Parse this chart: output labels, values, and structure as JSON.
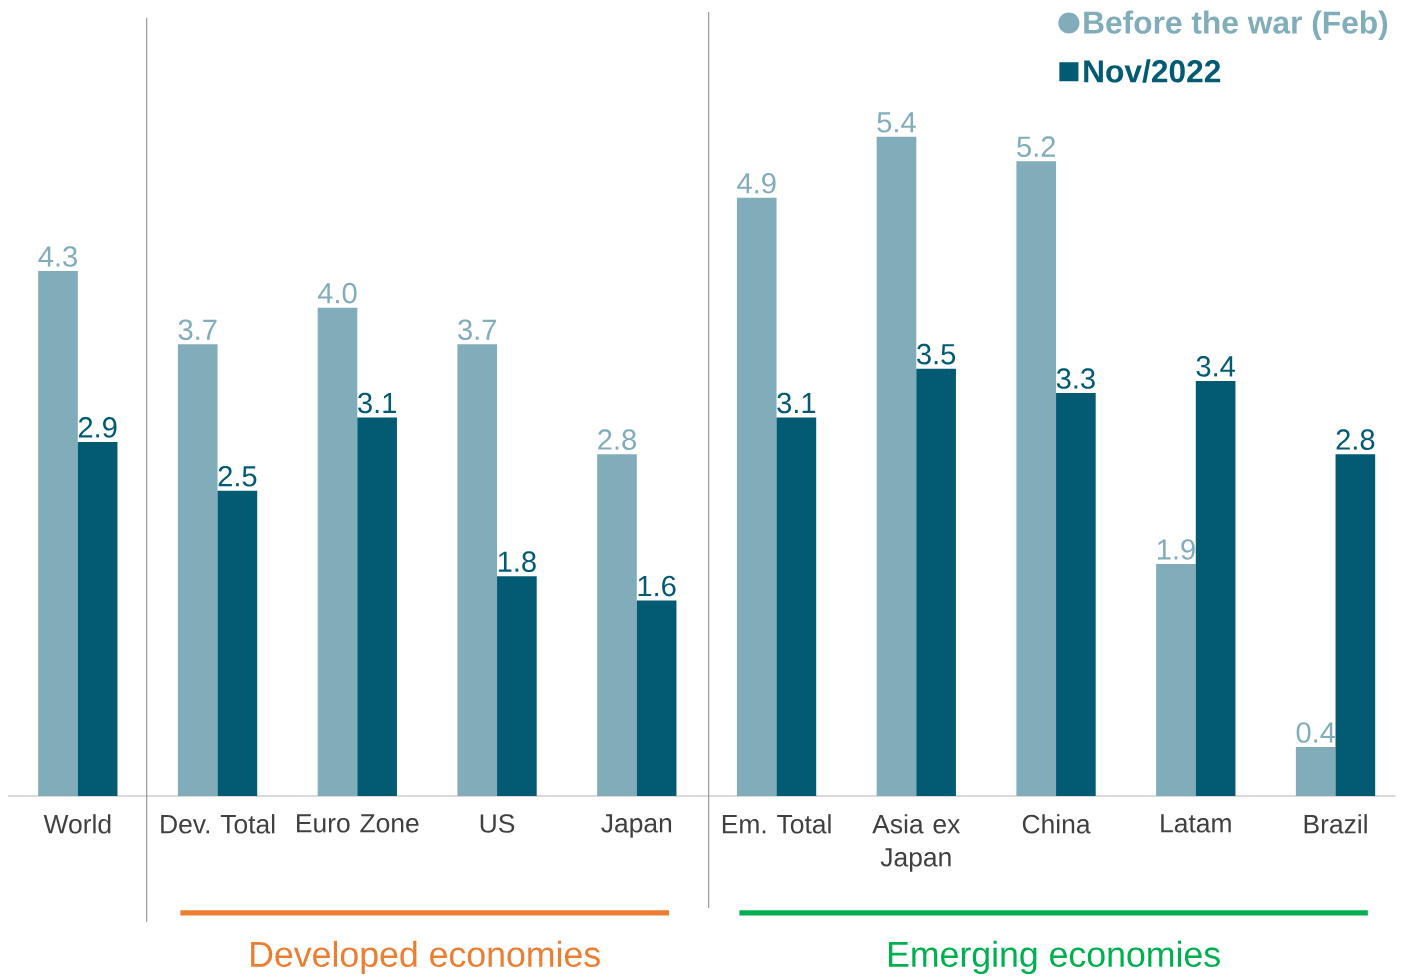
{
  "chart_data": {
    "type": "bar",
    "categories": [
      "World",
      "Dev. Total",
      "Euro Zone",
      "US",
      "Japan",
      "Em. Total",
      "Asia ex Japan",
      "China",
      "Latam",
      "Brazil"
    ],
    "series": [
      {
        "name": "Before the war (Feb)",
        "color": "#80adb9",
        "marker": "circle",
        "values": [
          4.3,
          3.7,
          4.0,
          3.7,
          2.8,
          4.9,
          5.4,
          5.2,
          1.9,
          0.4
        ],
        "value_labels": [
          "4.3",
          "3.7",
          "4.0",
          "3.7",
          "2.8",
          "4.9",
          "5.4",
          "5.2",
          "1.9",
          "0.4"
        ]
      },
      {
        "name": "Nov/2022",
        "color": "#035a73",
        "marker": "square",
        "values": [
          2.9,
          2.5,
          3.1,
          1.8,
          1.6,
          3.1,
          3.5,
          3.3,
          3.4,
          2.8
        ],
        "value_labels": [
          "2.9",
          "2.5",
          "3.1",
          "1.8",
          "1.6",
          "3.1",
          "3.5",
          "3.3",
          "3.4",
          "2.8"
        ]
      }
    ],
    "legend": "top right",
    "annotations": [
      "Developed economies",
      "Emerging economies"
    ]
  }
}
